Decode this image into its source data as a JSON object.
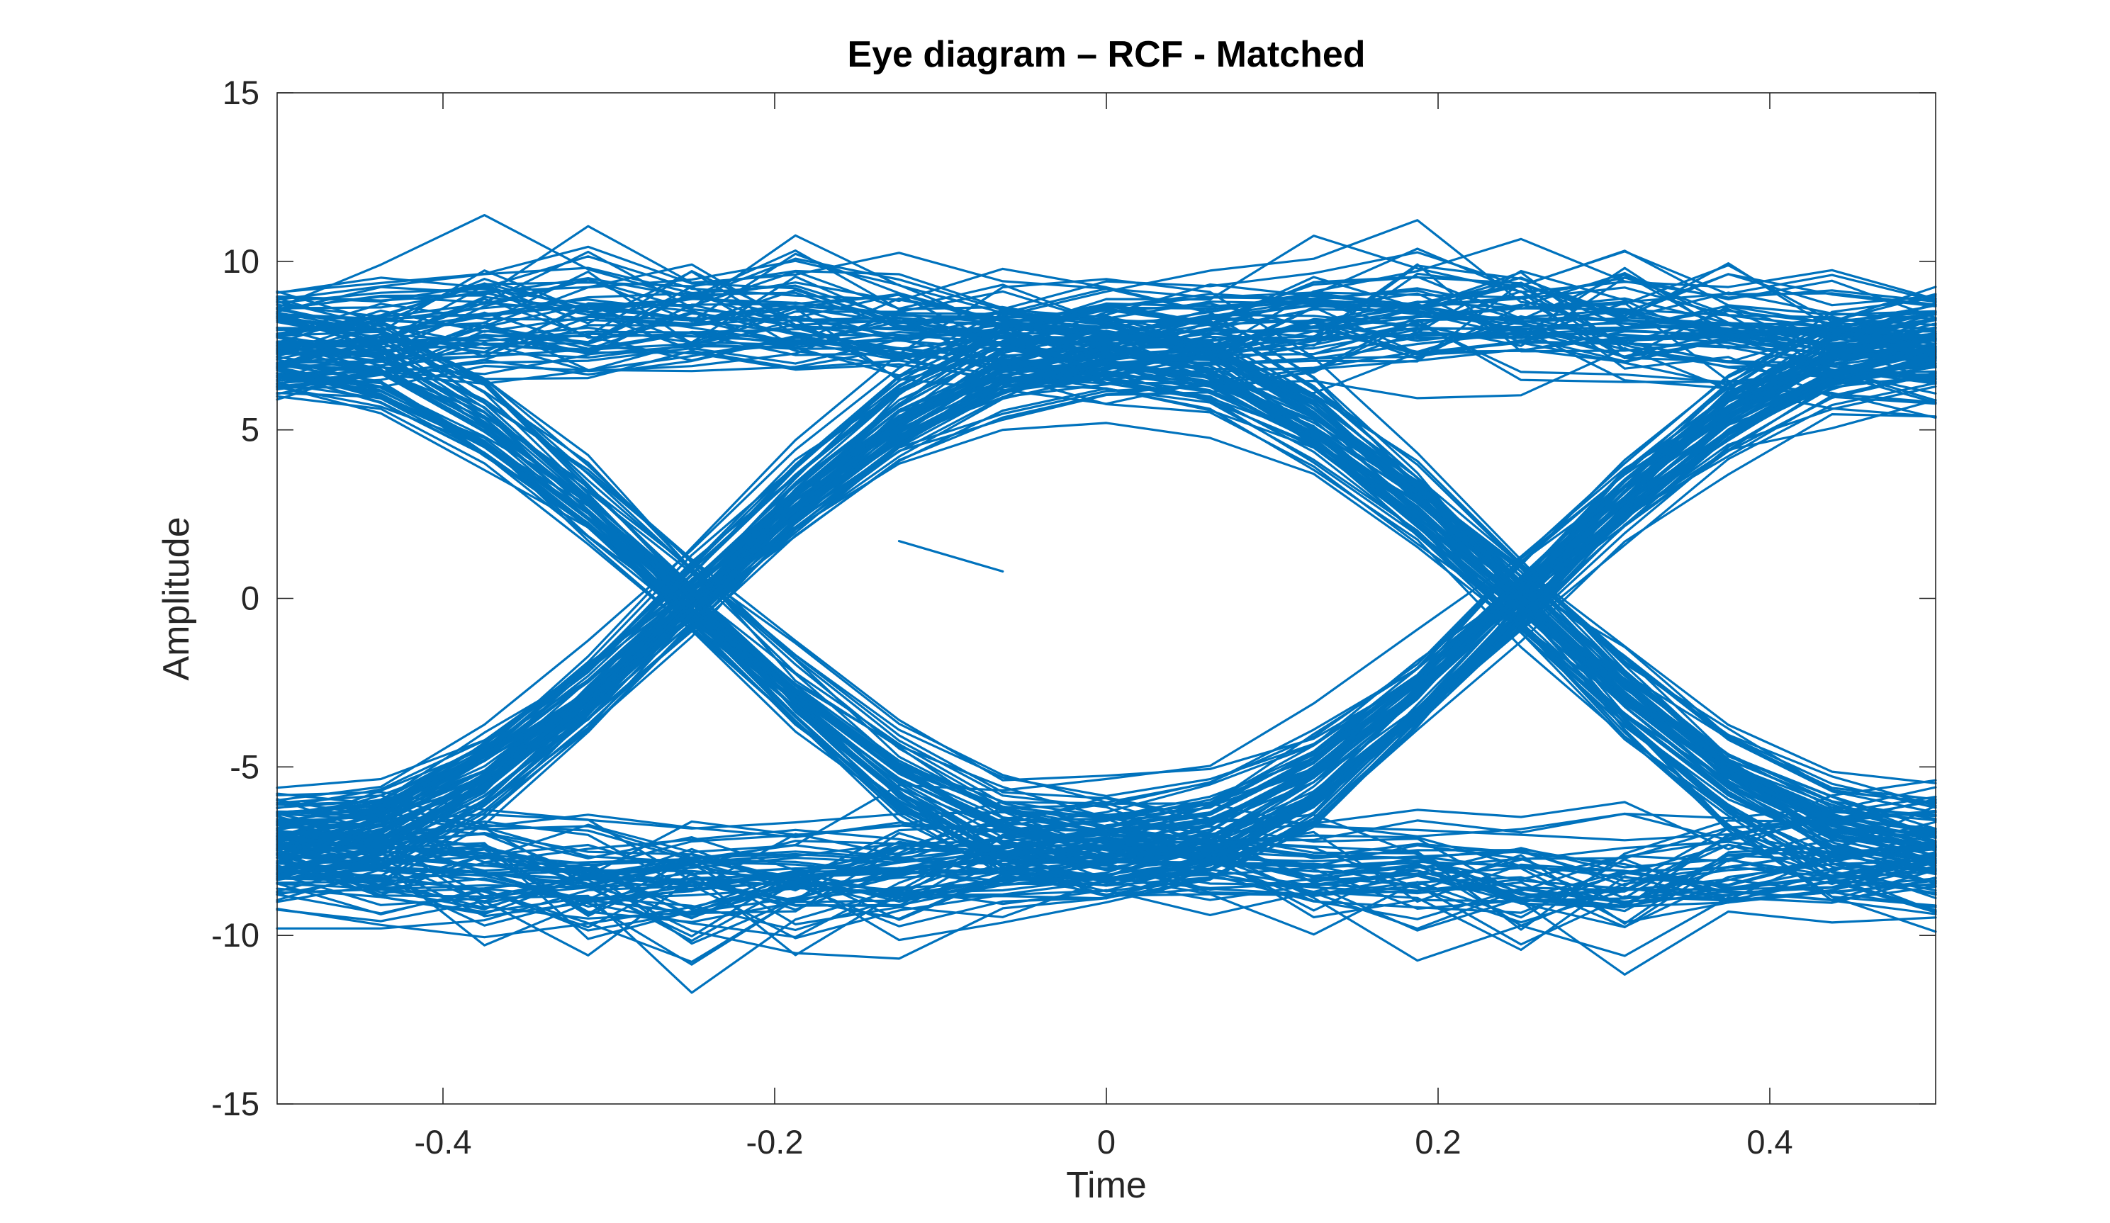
{
  "chart_data": {
    "type": "line",
    "title": "Eye diagram – RCF - Matched",
    "xlabel": "Time",
    "ylabel": "Amplitude",
    "xlim": [
      -0.5,
      0.5
    ],
    "ylim": [
      -15,
      15
    ],
    "xticks": [
      -0.4,
      -0.2,
      0,
      0.2,
      0.4
    ],
    "xtick_labels": [
      "-0.4",
      "-0.2",
      "0",
      "0.2",
      "0.4"
    ],
    "yticks": [
      -15,
      -10,
      -5,
      0,
      5,
      10,
      15
    ],
    "ytick_labels": [
      "-15",
      "-10",
      "-5",
      "0",
      "5",
      "10",
      "15"
    ],
    "grid": false,
    "line_color": "#0072BD",
    "sample_times": [
      -0.5,
      -0.4375,
      -0.375,
      -0.3125,
      -0.25,
      -0.1875,
      -0.125,
      -0.0625,
      0,
      0.0625,
      0.125,
      0.1875,
      0.25,
      0.3125,
      0.375,
      0.4375,
      0.5
    ],
    "symbol_levels": [
      -7.5,
      7.5
    ],
    "approx_eye_opening": {
      "upper_inner_edge": 3.6,
      "lower_inner_edge": -3.7,
      "level_spread_min": 4,
      "level_spread_max": 13.2
    },
    "trace_count": 240,
    "stray_trace": {
      "x": [
        -0.125,
        -0.0625
      ],
      "y": [
        1.7,
        0.8
      ]
    }
  }
}
